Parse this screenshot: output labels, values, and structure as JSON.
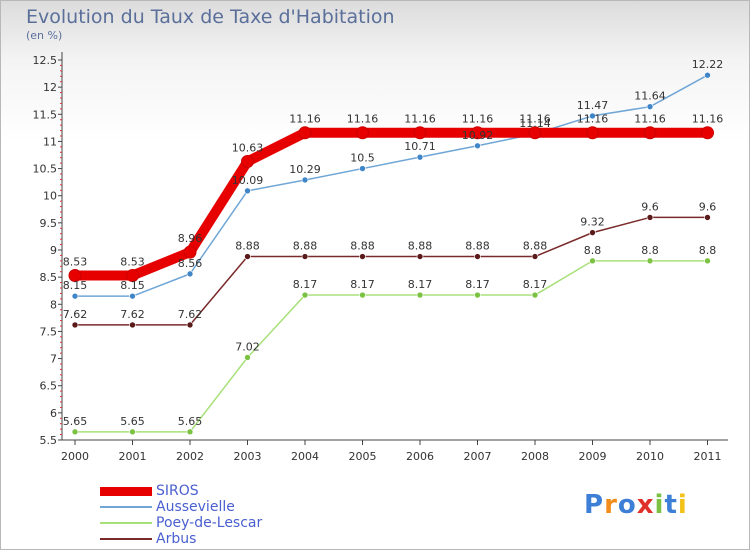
{
  "title": "Evolution du Taux de Taxe d'Habitation",
  "subtitle": "(en %)",
  "logo": {
    "text": "Proxiti",
    "colors": [
      "#3d7fd6",
      "#f28c1b",
      "#3d7fd6",
      "#e0302a",
      "#7cc242",
      "#3d7fd6",
      "#f2c21b"
    ]
  },
  "chart_data": {
    "type": "line",
    "x": [
      "2000",
      "2001",
      "2002",
      "2003",
      "2004",
      "2005",
      "2006",
      "2007",
      "2008",
      "2009",
      "2010",
      "2011"
    ],
    "ylim": [
      5.5,
      12.5
    ],
    "yticks": [
      "5.5",
      "6",
      "6.5",
      "7",
      "7.5",
      "8",
      "8.5",
      "9",
      "9.5",
      "10",
      "10.5",
      "11",
      "11.5",
      "12",
      "12.5"
    ],
    "grid": false,
    "legend_position": "bottom-left",
    "series": [
      {
        "name": "SIROS",
        "color": "#e60000",
        "width": 10,
        "values": [
          8.53,
          8.53,
          8.96,
          10.63,
          11.16,
          11.16,
          11.16,
          11.16,
          11.16,
          11.16,
          11.16,
          11.16
        ],
        "labels": [
          "8.53",
          "8.53",
          "8.96",
          "10.63",
          "11.16",
          "11.16",
          "11.16",
          "11.16",
          "11.16",
          "11.16",
          "11.16",
          "11.16"
        ]
      },
      {
        "name": "Aussevielle",
        "color": "#6fa6d6",
        "width": 1.5,
        "marker": "#3f86c8",
        "values": [
          8.15,
          8.15,
          8.56,
          10.09,
          10.29,
          10.5,
          10.71,
          10.92,
          11.14,
          11.47,
          11.64,
          12.22
        ],
        "labels": [
          "8.15",
          "8.15",
          "8.56",
          "10.09",
          "10.29",
          "10.5",
          "10.71",
          "10.92",
          "11.14",
          "11.47",
          "11.64",
          "12.22"
        ]
      },
      {
        "name": "Poey-de-Lescar",
        "color": "#a8e07a",
        "width": 1.5,
        "marker": "#7cc242",
        "values": [
          5.65,
          5.65,
          5.65,
          7.02,
          8.17,
          8.17,
          8.17,
          8.17,
          8.17,
          8.8,
          8.8,
          8.8
        ],
        "labels": [
          "5.65",
          "5.65",
          "5.65",
          "7.02",
          "8.17",
          "8.17",
          "8.17",
          "8.17",
          "8.17",
          "8.8",
          "8.8",
          "8.8"
        ]
      },
      {
        "name": "Arbus",
        "color": "#7a2a2a",
        "width": 1.5,
        "marker": "#5a1a1a",
        "values": [
          7.62,
          7.62,
          7.62,
          8.88,
          8.88,
          8.88,
          8.88,
          8.88,
          8.88,
          9.32,
          9.6,
          9.6
        ],
        "labels": [
          "7.62",
          "7.62",
          "7.62",
          "8.88",
          "8.88",
          "8.88",
          "8.88",
          "8.88",
          "8.88",
          "9.32",
          "9.6",
          "9.6"
        ]
      }
    ]
  }
}
